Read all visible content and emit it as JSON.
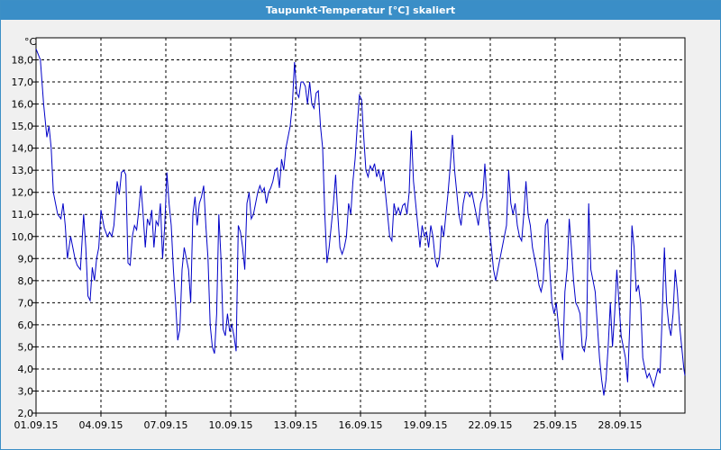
{
  "window": {
    "title": "Taupunkt-Temperatur [°C] skaliert"
  },
  "chart_data": {
    "type": "line",
    "title": "Taupunkt-Temperatur [°C] skaliert",
    "ylabel": "°C",
    "xlabel": "",
    "ylim": [
      2.0,
      19.0
    ],
    "xlim": [
      0,
      30
    ],
    "y_ticks": [
      "2,0",
      "3,0",
      "4,0",
      "5,0",
      "6,0",
      "7,0",
      "8,0",
      "9,0",
      "10,0",
      "11,0",
      "12,0",
      "13,0",
      "14,0",
      "15,0",
      "16,0",
      "17,0",
      "18,0"
    ],
    "x_ticks": [
      "01.09.15",
      "04.09.15",
      "07.09.15",
      "10.09.15",
      "13.09.15",
      "16.09.15",
      "19.09.15",
      "22.09.15",
      "25.09.15",
      "28.09.15"
    ],
    "x_unit": "days since 01.09.15",
    "grid": true,
    "series_color": "#0000c8",
    "series": [
      {
        "points": [
          [
            0.0,
            18.5
          ],
          [
            0.2,
            18.0
          ],
          [
            0.35,
            16.0
          ],
          [
            0.5,
            14.5
          ],
          [
            0.6,
            15.0
          ],
          [
            0.7,
            14.0
          ],
          [
            0.8,
            12.0
          ],
          [
            0.9,
            11.5
          ],
          [
            1.0,
            11.0
          ],
          [
            1.15,
            10.8
          ],
          [
            1.25,
            11.5
          ],
          [
            1.35,
            10.5
          ],
          [
            1.45,
            9.0
          ],
          [
            1.6,
            10.0
          ],
          [
            1.7,
            9.5
          ],
          [
            1.8,
            9.0
          ],
          [
            1.9,
            8.7
          ],
          [
            2.05,
            8.5
          ],
          [
            2.2,
            11.0
          ],
          [
            2.3,
            9.5
          ],
          [
            2.4,
            7.3
          ],
          [
            2.5,
            7.1
          ],
          [
            2.6,
            8.6
          ],
          [
            2.7,
            8.0
          ],
          [
            2.8,
            9.0
          ],
          [
            2.9,
            9.5
          ],
          [
            3.0,
            11.2
          ],
          [
            3.15,
            10.4
          ],
          [
            3.3,
            10.0
          ],
          [
            3.4,
            10.2
          ],
          [
            3.5,
            10.0
          ],
          [
            3.6,
            10.5
          ],
          [
            3.75,
            12.5
          ],
          [
            3.85,
            11.9
          ],
          [
            3.95,
            12.9
          ],
          [
            4.05,
            13.0
          ],
          [
            4.15,
            12.8
          ],
          [
            4.25,
            8.8
          ],
          [
            4.35,
            8.7
          ],
          [
            4.45,
            10.0
          ],
          [
            4.55,
            10.5
          ],
          [
            4.65,
            10.3
          ],
          [
            4.75,
            11.2
          ],
          [
            4.85,
            12.3
          ],
          [
            4.95,
            11.0
          ],
          [
            5.05,
            9.5
          ],
          [
            5.15,
            10.8
          ],
          [
            5.25,
            10.5
          ],
          [
            5.35,
            11.2
          ],
          [
            5.45,
            9.5
          ],
          [
            5.55,
            10.7
          ],
          [
            5.65,
            10.5
          ],
          [
            5.75,
            11.5
          ],
          [
            5.85,
            9.0
          ],
          [
            5.95,
            10.5
          ],
          [
            6.05,
            12.9
          ],
          [
            6.15,
            11.5
          ],
          [
            6.25,
            10.5
          ],
          [
            6.35,
            8.5
          ],
          [
            6.45,
            7.0
          ],
          [
            6.55,
            5.3
          ],
          [
            6.65,
            5.8
          ],
          [
            6.75,
            8.5
          ],
          [
            6.85,
            9.5
          ],
          [
            6.95,
            9.0
          ],
          [
            7.05,
            8.5
          ],
          [
            7.15,
            7.0
          ],
          [
            7.25,
            11.0
          ],
          [
            7.35,
            11.8
          ],
          [
            7.45,
            10.5
          ],
          [
            7.55,
            11.5
          ],
          [
            7.65,
            11.8
          ],
          [
            7.75,
            12.3
          ],
          [
            7.85,
            10.5
          ],
          [
            7.95,
            9.0
          ],
          [
            8.05,
            6.0
          ],
          [
            8.15,
            5.0
          ],
          [
            8.25,
            4.7
          ],
          [
            8.35,
            6.5
          ],
          [
            8.45,
            11.0
          ],
          [
            8.55,
            9.0
          ],
          [
            8.65,
            5.8
          ],
          [
            8.75,
            5.5
          ],
          [
            8.85,
            6.5
          ],
          [
            8.95,
            5.7
          ],
          [
            9.05,
            6.0
          ],
          [
            9.15,
            5.5
          ],
          [
            9.25,
            4.8
          ],
          [
            9.35,
            10.5
          ],
          [
            9.45,
            10.2
          ],
          [
            9.55,
            9.5
          ],
          [
            9.65,
            8.5
          ],
          [
            9.75,
            11.5
          ],
          [
            9.85,
            12.0
          ],
          [
            9.95,
            10.8
          ],
          [
            10.05,
            11.0
          ],
          [
            10.15,
            11.5
          ],
          [
            10.25,
            12.0
          ],
          [
            10.35,
            12.3
          ],
          [
            10.45,
            12.0
          ],
          [
            10.55,
            12.2
          ],
          [
            10.65,
            11.5
          ],
          [
            10.75,
            12.0
          ],
          [
            10.85,
            12.2
          ],
          [
            10.95,
            12.5
          ],
          [
            11.05,
            13.0
          ],
          [
            11.15,
            13.1
          ],
          [
            11.25,
            12.2
          ],
          [
            11.35,
            13.5
          ],
          [
            11.45,
            13.0
          ],
          [
            11.55,
            14.0
          ],
          [
            11.65,
            14.5
          ],
          [
            11.75,
            15.0
          ],
          [
            11.85,
            16.0
          ],
          [
            11.95,
            17.9
          ],
          [
            12.05,
            16.5
          ],
          [
            12.15,
            16.3
          ],
          [
            12.25,
            17.0
          ],
          [
            12.35,
            17.0
          ],
          [
            12.45,
            16.8
          ],
          [
            12.55,
            16.0
          ],
          [
            12.65,
            17.0
          ],
          [
            12.75,
            16.0
          ],
          [
            12.85,
            15.8
          ],
          [
            12.95,
            16.5
          ],
          [
            13.05,
            16.6
          ],
          [
            13.15,
            15.0
          ],
          [
            13.25,
            14.0
          ],
          [
            13.35,
            11.0
          ],
          [
            13.45,
            8.8
          ],
          [
            13.55,
            9.5
          ],
          [
            13.65,
            10.5
          ],
          [
            13.75,
            11.5
          ],
          [
            13.85,
            12.8
          ],
          [
            13.95,
            11.0
          ],
          [
            14.05,
            9.5
          ],
          [
            14.15,
            9.2
          ],
          [
            14.25,
            9.5
          ],
          [
            14.35,
            10.0
          ],
          [
            14.45,
            11.5
          ],
          [
            14.55,
            11.0
          ],
          [
            14.65,
            12.5
          ],
          [
            14.75,
            13.5
          ],
          [
            14.85,
            15.0
          ],
          [
            14.95,
            16.4
          ],
          [
            15.05,
            16.2
          ],
          [
            15.15,
            14.5
          ],
          [
            15.25,
            13.0
          ],
          [
            15.35,
            12.7
          ],
          [
            15.45,
            13.2
          ],
          [
            15.55,
            13.0
          ],
          [
            15.65,
            13.3
          ],
          [
            15.75,
            12.7
          ],
          [
            15.85,
            13.0
          ],
          [
            15.95,
            12.5
          ],
          [
            16.05,
            13.0
          ],
          [
            16.15,
            12.0
          ],
          [
            16.25,
            11.0
          ],
          [
            16.35,
            10.0
          ],
          [
            16.45,
            9.8
          ],
          [
            16.55,
            11.5
          ],
          [
            16.65,
            11.0
          ],
          [
            16.75,
            11.3
          ],
          [
            16.85,
            11.0
          ],
          [
            16.95,
            11.4
          ],
          [
            17.05,
            11.5
          ],
          [
            17.15,
            11.0
          ],
          [
            17.25,
            12.0
          ],
          [
            17.35,
            14.8
          ],
          [
            17.45,
            12.5
          ],
          [
            17.55,
            11.5
          ],
          [
            17.65,
            10.5
          ],
          [
            17.75,
            9.5
          ],
          [
            17.85,
            10.5
          ],
          [
            17.95,
            10.0
          ],
          [
            18.05,
            10.2
          ],
          [
            18.15,
            9.5
          ],
          [
            18.25,
            10.5
          ],
          [
            18.35,
            10.0
          ],
          [
            18.45,
            9.0
          ],
          [
            18.55,
            8.6
          ],
          [
            18.65,
            9.0
          ],
          [
            18.75,
            10.5
          ],
          [
            18.85,
            10.0
          ],
          [
            18.95,
            11.0
          ],
          [
            19.05,
            12.0
          ],
          [
            19.15,
            13.2
          ],
          [
            19.25,
            14.6
          ],
          [
            19.35,
            13.0
          ],
          [
            19.45,
            12.0
          ],
          [
            19.55,
            11.0
          ],
          [
            19.65,
            10.5
          ],
          [
            19.75,
            11.5
          ],
          [
            19.85,
            12.0
          ],
          [
            19.95,
            12.0
          ],
          [
            20.05,
            11.8
          ],
          [
            20.15,
            12.0
          ],
          [
            20.25,
            11.5
          ],
          [
            20.35,
            11.0
          ],
          [
            20.45,
            10.5
          ],
          [
            20.55,
            11.5
          ],
          [
            20.65,
            11.8
          ],
          [
            20.75,
            13.3
          ],
          [
            20.85,
            11.5
          ],
          [
            20.95,
            10.5
          ],
          [
            21.05,
            9.5
          ],
          [
            21.15,
            8.5
          ],
          [
            21.25,
            8.0
          ],
          [
            21.35,
            8.5
          ],
          [
            21.45,
            9.0
          ],
          [
            21.55,
            9.5
          ],
          [
            21.65,
            10.0
          ],
          [
            21.75,
            10.5
          ],
          [
            21.85,
            13.0
          ],
          [
            21.95,
            11.5
          ],
          [
            22.05,
            11.0
          ],
          [
            22.15,
            11.5
          ],
          [
            22.25,
            10.5
          ],
          [
            22.35,
            10.0
          ],
          [
            22.45,
            9.8
          ],
          [
            22.55,
            11.0
          ],
          [
            22.65,
            12.5
          ],
          [
            22.75,
            11.0
          ],
          [
            22.85,
            10.5
          ],
          [
            22.95,
            9.5
          ],
          [
            23.05,
            9.0
          ],
          [
            23.15,
            8.5
          ],
          [
            23.25,
            7.8
          ],
          [
            23.35,
            7.5
          ],
          [
            23.45,
            8.0
          ],
          [
            23.55,
            10.5
          ],
          [
            23.65,
            10.8
          ],
          [
            23.75,
            8.5
          ],
          [
            23.85,
            7.0
          ],
          [
            23.95,
            6.5
          ],
          [
            24.05,
            7.0
          ],
          [
            24.15,
            6.0
          ],
          [
            24.25,
            5.0
          ],
          [
            24.35,
            4.4
          ],
          [
            24.45,
            7.5
          ],
          [
            24.55,
            8.5
          ],
          [
            24.65,
            10.8
          ],
          [
            24.75,
            9.5
          ],
          [
            24.85,
            8.0
          ],
          [
            24.95,
            7.0
          ],
          [
            25.05,
            6.8
          ],
          [
            25.15,
            6.5
          ],
          [
            25.25,
            5.0
          ],
          [
            25.35,
            4.8
          ],
          [
            25.45,
            5.5
          ],
          [
            25.55,
            11.5
          ],
          [
            25.65,
            8.5
          ],
          [
            25.75,
            8.0
          ],
          [
            25.85,
            7.5
          ],
          [
            25.95,
            6.0
          ],
          [
            26.05,
            4.5
          ],
          [
            26.15,
            3.5
          ],
          [
            26.25,
            2.8
          ],
          [
            26.35,
            3.5
          ],
          [
            26.45,
            5.0
          ],
          [
            26.55,
            7.0
          ],
          [
            26.65,
            5.0
          ],
          [
            26.75,
            6.5
          ],
          [
            26.85,
            8.5
          ],
          [
            26.95,
            7.0
          ],
          [
            27.05,
            5.5
          ],
          [
            27.15,
            5.0
          ],
          [
            27.25,
            4.5
          ],
          [
            27.35,
            3.4
          ],
          [
            27.45,
            6.0
          ],
          [
            27.55,
            10.5
          ],
          [
            27.65,
            9.5
          ],
          [
            27.75,
            7.5
          ],
          [
            27.85,
            7.8
          ],
          [
            27.95,
            7.0
          ],
          [
            28.05,
            4.5
          ],
          [
            28.15,
            4.0
          ],
          [
            28.25,
            3.6
          ],
          [
            28.35,
            3.8
          ],
          [
            28.45,
            3.5
          ],
          [
            28.55,
            3.2
          ],
          [
            28.65,
            3.6
          ],
          [
            28.75,
            4.0
          ],
          [
            28.85,
            3.8
          ],
          [
            28.95,
            6.5
          ],
          [
            29.05,
            9.5
          ],
          [
            29.15,
            7.0
          ],
          [
            29.25,
            6.0
          ],
          [
            29.35,
            5.5
          ],
          [
            29.45,
            6.5
          ],
          [
            29.55,
            8.5
          ],
          [
            29.65,
            7.5
          ],
          [
            29.75,
            6.0
          ],
          [
            29.85,
            5.0
          ],
          [
            29.95,
            4.0
          ],
          [
            30.0,
            3.7
          ]
        ]
      }
    ]
  }
}
